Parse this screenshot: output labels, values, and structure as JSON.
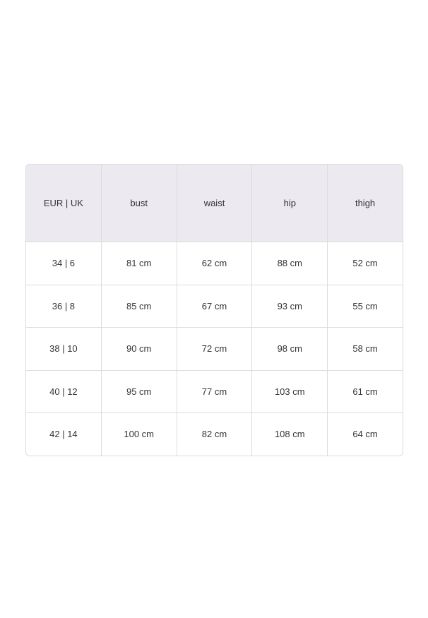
{
  "headers": [
    "EUR | UK",
    "bust",
    "waist",
    "hip",
    "thigh"
  ],
  "rows": [
    [
      "34 | 6",
      "81 cm",
      "62 cm",
      "88 cm",
      "52 cm"
    ],
    [
      "36 | 8",
      "85 cm",
      "67 cm",
      "93 cm",
      "55 cm"
    ],
    [
      "38 | 10",
      "90 cm",
      "72 cm",
      "98 cm",
      "58 cm"
    ],
    [
      "40 | 12",
      "95 cm",
      "77 cm",
      "103 cm",
      "61 cm"
    ],
    [
      "42 | 14",
      "100 cm",
      "82 cm",
      "108 cm",
      "64 cm"
    ]
  ],
  "colors": {
    "header_bg": "#ece9f0",
    "border": "#dcdcdc"
  }
}
